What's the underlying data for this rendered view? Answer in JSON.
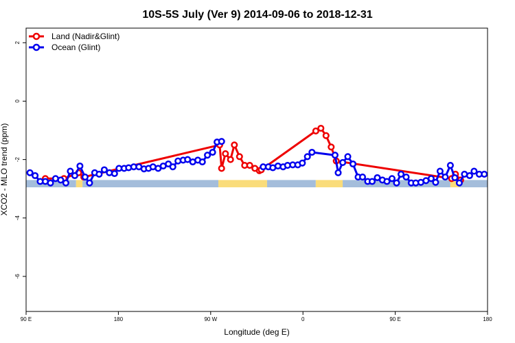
{
  "chart_data": {
    "type": "line",
    "title": "10S-5S July (Ver 9)   2014-09-06 to 2018-12-31",
    "xlabel": "Longitude (deg E)",
    "ylabel": "XCO2 - MLO trend (ppm)",
    "xlim": [
      90,
      450
    ],
    "ylim": [
      -7.2,
      2.5
    ],
    "x_ticks": [
      {
        "value": 90,
        "label": "90 E"
      },
      {
        "value": 162,
        "label": "180"
      },
      {
        "value": 234,
        "label": "90 W"
      },
      {
        "value": 306,
        "label": "0"
      },
      {
        "value": 378,
        "label": "90 E"
      },
      {
        "value": 450,
        "label": "180"
      }
    ],
    "y_ticks": [
      {
        "value": 2,
        "label": "2"
      },
      {
        "value": 0,
        "label": "0"
      },
      {
        "value": -2,
        "label": "-2"
      },
      {
        "value": -4,
        "label": "-4"
      },
      {
        "value": -6,
        "label": "-6"
      }
    ],
    "grid": false,
    "legend_position": "top-left",
    "surface_band": {
      "y_range": [
        -2.95,
        -2.7
      ],
      "colors": {
        "ocean": "#a4bddb",
        "land": "#fadc7a"
      },
      "segments": [
        {
          "type": "ocean",
          "x0": 90,
          "x1": 129
        },
        {
          "type": "land",
          "x0": 129,
          "x1": 134
        },
        {
          "type": "ocean",
          "x0": 134,
          "x1": 240
        },
        {
          "type": "land",
          "x0": 240,
          "x1": 278
        },
        {
          "type": "ocean",
          "x0": 278,
          "x1": 316
        },
        {
          "type": "land",
          "x0": 316,
          "x1": 337
        },
        {
          "type": "ocean",
          "x0": 337,
          "x1": 421
        },
        {
          "type": "land",
          "x0": 421,
          "x1": 428
        },
        {
          "type": "ocean",
          "x0": 428,
          "x1": 450
        }
      ]
    },
    "series": [
      {
        "name": "Land (Nadir&Glint)",
        "color": "#ee0000",
        "x": [
          105,
          119.5,
          131,
          135,
          241,
          242.5,
          245.5,
          249.5,
          252.5,
          256.5,
          260.5,
          264.5,
          268.5,
          272,
          273.5,
          316,
          320,
          324,
          328,
          332,
          422,
          425,
          429
        ],
        "y": [
          -2.65,
          -2.65,
          -2.45,
          -2.6,
          -1.5,
          -2.3,
          -1.8,
          -2.0,
          -1.5,
          -1.9,
          -2.2,
          -2.2,
          -2.3,
          -2.38,
          -2.35,
          -1.02,
          -0.93,
          -1.18,
          -1.57,
          -2.05,
          -2.65,
          -2.5,
          -2.7
        ]
      },
      {
        "name": "Ocean (Glint)",
        "color": "#0000ee",
        "segments": [
          {
            "x": [
              93,
              97,
              101,
              105,
              109,
              113,
              117,
              121,
              124.5,
              128,
              132,
              136,
              139.5,
              143.5,
              147,
              151,
              155,
              159,
              162.5,
              166.5,
              170,
              174,
              178,
              182,
              185.5,
              189,
              193,
              197,
              201,
              204.5,
              208.5,
              212.5,
              216,
              220,
              224,
              227.5,
              231.5,
              235.5,
              239,
              242.5
            ],
            "y": [
              -2.45,
              -2.55,
              -2.75,
              -2.75,
              -2.8,
              -2.65,
              -2.7,
              -2.8,
              -2.4,
              -2.55,
              -2.22,
              -2.6,
              -2.8,
              -2.45,
              -2.5,
              -2.35,
              -2.45,
              -2.48,
              -2.3,
              -2.3,
              -2.28,
              -2.25,
              -2.25,
              -2.32,
              -2.3,
              -2.25,
              -2.3,
              -2.22,
              -2.15,
              -2.25,
              -2.05,
              -2.02,
              -2.0,
              -2.08,
              -2.02,
              -2.08,
              -1.85,
              -1.75,
              -1.4,
              -1.38
            ]
          },
          {
            "x": [
              275,
              279,
              282.5,
              286.5,
              290.5,
              294,
              298,
              302,
              305.5,
              309.5,
              313,
              331,
              333.5,
              337,
              341,
              345,
              349,
              352.5,
              356.5,
              360,
              364,
              368,
              371.5,
              375.5,
              379,
              382.5,
              386.5,
              390.5,
              394,
              398,
              402,
              406,
              409.5,
              413,
              417,
              421,
              424.5,
              428,
              432,
              436,
              439.5,
              443.5,
              447.5
            ],
            "y": [
              -2.25,
              -2.25,
              -2.28,
              -2.22,
              -2.25,
              -2.2,
              -2.18,
              -2.18,
              -2.12,
              -1.9,
              -1.75,
              -1.85,
              -2.45,
              -2.1,
              -1.9,
              -2.15,
              -2.6,
              -2.6,
              -2.75,
              -2.75,
              -2.62,
              -2.7,
              -2.75,
              -2.65,
              -2.8,
              -2.5,
              -2.6,
              -2.8,
              -2.8,
              -2.78,
              -2.72,
              -2.65,
              -2.78,
              -2.4,
              -2.6,
              -2.2,
              -2.62,
              -2.8,
              -2.5,
              -2.55,
              -2.4,
              -2.5,
              -2.5
            ]
          }
        ]
      }
    ]
  }
}
